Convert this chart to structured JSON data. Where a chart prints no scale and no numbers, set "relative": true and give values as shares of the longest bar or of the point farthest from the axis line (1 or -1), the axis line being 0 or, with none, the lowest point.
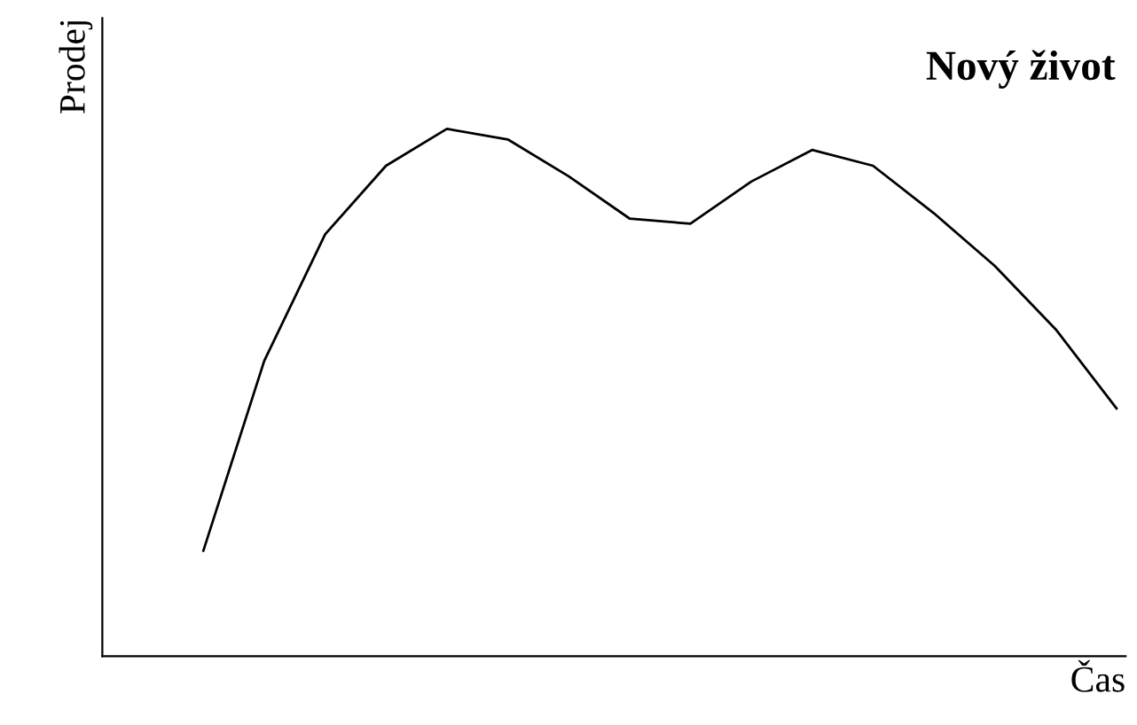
{
  "chart_data": {
    "type": "line",
    "title": "Nový život",
    "xlabel": "Čas",
    "ylabel": "Prodej",
    "relative": true,
    "categories": [
      null,
      null,
      null,
      null,
      null,
      null,
      null,
      null,
      null,
      null,
      null,
      null,
      null,
      null,
      null,
      null
    ],
    "series": [
      {
        "color": "#000000",
        "values": [
          0.2,
          0.56,
          0.8,
          0.93,
          1,
          0.98,
          0.91,
          0.83,
          0.82,
          0.9,
          0.96,
          0.93,
          0.84,
          0.74,
          0.62,
          0.47
        ]
      }
    ],
    "tick_labels": false
  }
}
